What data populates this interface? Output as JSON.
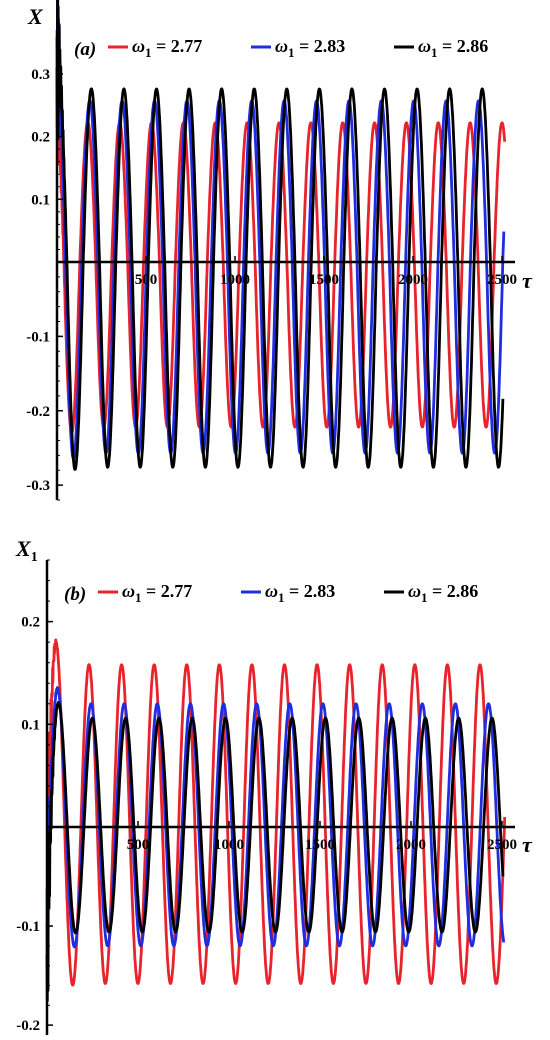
{
  "chart_data": [
    {
      "type": "line",
      "panel": "(a)",
      "ylabel": "X",
      "ylabel_sub": "",
      "xlabel": "τ",
      "xlim": [
        0,
        2550
      ],
      "ylim": [
        -0.32,
        0.37
      ],
      "xticks": [
        500,
        1000,
        1500,
        2000,
        2500
      ],
      "xtick_labels": [
        "500",
        "1000",
        "1500",
        "2000",
        "2500"
      ],
      "yticks": [
        0.3,
        0.2,
        0.1,
        -0.1,
        -0.2,
        -0.3
      ],
      "ytick_labels": [
        "0.3",
        "0.2",
        "0.1",
        "-0.1",
        "-0.2",
        "-0.3"
      ],
      "grid": false,
      "legend_position": "top",
      "series": [
        {
          "name": "ω1 = 2.77",
          "color": "#e8232b",
          "steady_amplitude": 0.222,
          "period": 179,
          "phase": -6,
          "decay_time": 35,
          "initial_amplitude": 0.3,
          "t_end": 2515
        },
        {
          "name": "ω1 = 2.83",
          "color": "#1f2ce0",
          "steady_amplitude": 0.257,
          "period": 182,
          "phase": 2,
          "decay_time": 35,
          "initial_amplitude": 0.36,
          "t_end": 2510
        },
        {
          "name": "ω1 = 2.86",
          "color": "#000000",
          "steady_amplitude": 0.276,
          "period": 183,
          "phase": 10,
          "decay_time": 35,
          "initial_amplitude": 0.33,
          "t_end": 2505
        }
      ]
    },
    {
      "type": "line",
      "panel": "(b)",
      "ylabel": "X",
      "ylabel_sub": "1",
      "xlabel": "τ",
      "xlim": [
        0,
        2550
      ],
      "ylim": [
        -0.21,
        0.26
      ],
      "xticks": [
        500,
        1000,
        1500,
        2000,
        2500
      ],
      "xtick_labels": [
        "500",
        "1000",
        "1500",
        "2000",
        "2500"
      ],
      "yticks": [
        0.2,
        0.1,
        -0.1,
        -0.2
      ],
      "ytick_labels": [
        "0.2",
        "0.1",
        "-0.1",
        "-0.2"
      ],
      "grid": false,
      "legend_position": "top",
      "series": [
        {
          "name": "ω1 = 2.77",
          "color": "#e8232b",
          "steady_amplitude": 0.158,
          "period": 179,
          "phase": 52,
          "decay_time": 35,
          "initial_amplitude": 0.25,
          "t_end": 2515
        },
        {
          "name": "ω1 = 2.83",
          "color": "#1f2ce0",
          "steady_amplitude": 0.12,
          "period": 182,
          "phase": 60,
          "decay_time": 35,
          "initial_amplitude": 0.2,
          "t_end": 2510
        },
        {
          "name": "ω1 = 2.86",
          "color": "#000000",
          "steady_amplitude": 0.106,
          "period": 183,
          "phase": 66,
          "decay_time": 35,
          "initial_amplitude": 0.2,
          "t_end": 2505
        }
      ]
    }
  ]
}
